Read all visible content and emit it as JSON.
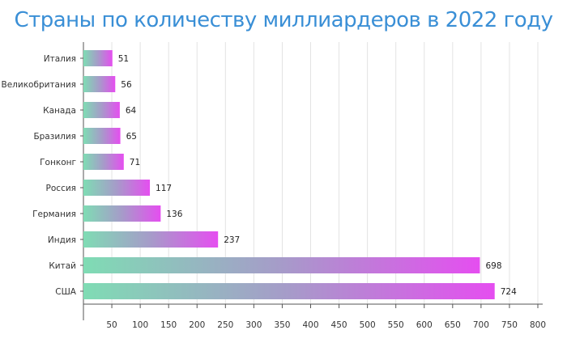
{
  "chart_data": {
    "type": "bar",
    "orientation": "horizontal",
    "title": "Страны по количеству миллиардеров в 2022 году",
    "categories": [
      "Италия",
      "Великобритания",
      "Канада",
      "Бразилия",
      "Гонконг",
      "Россия",
      "Германия",
      "Индия",
      "Китай",
      "США"
    ],
    "values": [
      51,
      56,
      64,
      65,
      71,
      117,
      136,
      237,
      698,
      724
    ],
    "xlim": [
      0,
      800
    ],
    "xticks": [
      50,
      100,
      150,
      200,
      250,
      300,
      350,
      400,
      450,
      500,
      550,
      600,
      650,
      700,
      750,
      800
    ],
    "grid": true,
    "colors": {
      "title": "#3a8fd6",
      "bar_start": "#7fdcb4",
      "bar_mid": "#a69bc9",
      "bar_end": "#e54ef0",
      "grid": "#e3e3e3",
      "axis": "#555555"
    }
  }
}
